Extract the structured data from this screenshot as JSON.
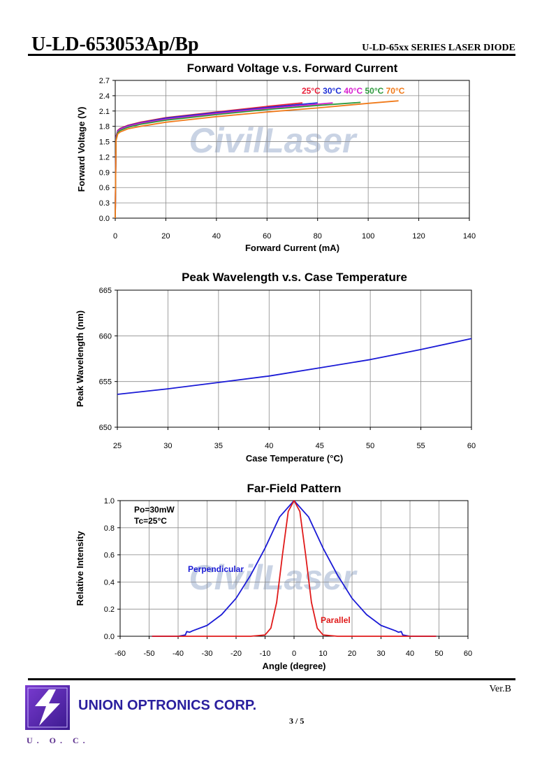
{
  "header": {
    "title": "U-LD-653053Ap/Bp",
    "series": "U-LD-65xx SERIES LASER DIODE"
  },
  "watermark": "CivilLaser",
  "footer": {
    "version": "Ver.B",
    "company": "UNION OPTRONICS CORP.",
    "page": "3 / 5",
    "logo_text": "U. O. C."
  },
  "chart_data": [
    {
      "type": "line",
      "title": "Forward Voltage v.s. Forward Current",
      "xlabel": "Forward Current (mA)",
      "ylabel": "Forward Voltage (V)",
      "xlim": [
        0,
        140
      ],
      "ylim": [
        0,
        2.7
      ],
      "xticks": [
        0,
        20,
        40,
        60,
        80,
        100,
        120,
        140
      ],
      "yticks": [
        "0.0",
        "0.3",
        "0.6",
        "0.9",
        "1.2",
        "1.5",
        "1.8",
        "2.1",
        "2.4",
        "2.7"
      ],
      "grid": true,
      "legend_position": "top-right",
      "series": [
        {
          "name": "25°C",
          "color": "#e8203a",
          "x": [
            0,
            0.3,
            1,
            2,
            5,
            10,
            20,
            40,
            60,
            74
          ],
          "y": [
            0,
            1.6,
            1.72,
            1.76,
            1.82,
            1.88,
            1.97,
            2.08,
            2.19,
            2.26
          ]
        },
        {
          "name": "30°C",
          "color": "#1e2fd6",
          "x": [
            0,
            0.3,
            1,
            2,
            5,
            10,
            20,
            40,
            60,
            80
          ],
          "y": [
            0,
            1.58,
            1.71,
            1.75,
            1.81,
            1.87,
            1.96,
            2.07,
            2.17,
            2.26
          ]
        },
        {
          "name": "40°C",
          "color": "#d81fd0",
          "x": [
            0,
            0.3,
            1,
            2,
            5,
            10,
            20,
            40,
            60,
            86
          ],
          "y": [
            0,
            1.57,
            1.7,
            1.74,
            1.8,
            1.86,
            1.94,
            2.05,
            2.15,
            2.26
          ]
        },
        {
          "name": "50°C",
          "color": "#2e9a3e",
          "x": [
            0,
            0.3,
            1,
            2,
            5,
            10,
            20,
            40,
            60,
            80,
            97
          ],
          "y": [
            0,
            1.55,
            1.68,
            1.72,
            1.78,
            1.84,
            1.92,
            2.03,
            2.13,
            2.21,
            2.27
          ]
        },
        {
          "name": "70°C",
          "color": "#f07a1a",
          "x": [
            0,
            0.3,
            1,
            2,
            5,
            10,
            20,
            40,
            60,
            80,
            100,
            112
          ],
          "y": [
            0,
            1.52,
            1.65,
            1.69,
            1.75,
            1.8,
            1.88,
            1.99,
            2.08,
            2.16,
            2.25,
            2.3
          ]
        }
      ]
    },
    {
      "type": "line",
      "title": "Peak Wavelength v.s. Case Temperature",
      "xlabel": "Case Temperature (°C)",
      "ylabel": "Peak Wavelength (nm)",
      "xlim": [
        25,
        60
      ],
      "ylim": [
        650,
        665
      ],
      "xticks": [
        25,
        30,
        35,
        40,
        45,
        50,
        55,
        60
      ],
      "yticks": [
        650,
        655,
        660,
        665
      ],
      "grid": true,
      "series": [
        {
          "color": "#1a1ad6",
          "x": [
            25,
            30,
            35,
            40,
            45,
            50,
            55,
            60
          ],
          "y": [
            653.6,
            654.2,
            654.9,
            655.6,
            656.5,
            657.4,
            658.5,
            659.7
          ]
        }
      ]
    },
    {
      "type": "line",
      "title": "Far-Field Pattern",
      "xlabel": "Angle (degree)",
      "ylabel": "Relative Intensity",
      "xlim": [
        -60,
        60
      ],
      "ylim": [
        0,
        1.0
      ],
      "xticks": [
        -60,
        -50,
        -40,
        -30,
        -20,
        -10,
        0,
        10,
        20,
        30,
        40,
        50,
        60
      ],
      "yticks": [
        "0.0",
        "0.2",
        "0.4",
        "0.6",
        "0.8",
        "1.0"
      ],
      "grid": true,
      "annotations": [
        "Po=30mW",
        "Tc=25°C"
      ],
      "series": [
        {
          "name": "Perpendicular",
          "color": "#1a1ad6",
          "x": [
            -49,
            -40,
            -37.5,
            -37,
            -36,
            -35,
            -30,
            -25,
            -20,
            -15,
            -10,
            -5,
            0,
            5,
            10,
            15,
            20,
            25,
            30,
            35,
            36,
            37,
            37.5,
            40,
            49
          ],
          "y": [
            0,
            0,
            0.01,
            0.035,
            0.03,
            0.04,
            0.08,
            0.16,
            0.28,
            0.45,
            0.65,
            0.88,
            1.0,
            0.88,
            0.65,
            0.45,
            0.28,
            0.16,
            0.08,
            0.04,
            0.03,
            0.035,
            0.01,
            0,
            0
          ]
        },
        {
          "name": "Parallel",
          "color": "#e01a1a",
          "x": [
            -49,
            -15,
            -10,
            -8,
            -6,
            -4,
            -2,
            0,
            2,
            4,
            6,
            8,
            10,
            15,
            49
          ],
          "y": [
            0,
            0,
            0.01,
            0.06,
            0.25,
            0.6,
            0.92,
            1.0,
            0.92,
            0.6,
            0.25,
            0.06,
            0.01,
            0,
            0
          ]
        }
      ]
    }
  ]
}
